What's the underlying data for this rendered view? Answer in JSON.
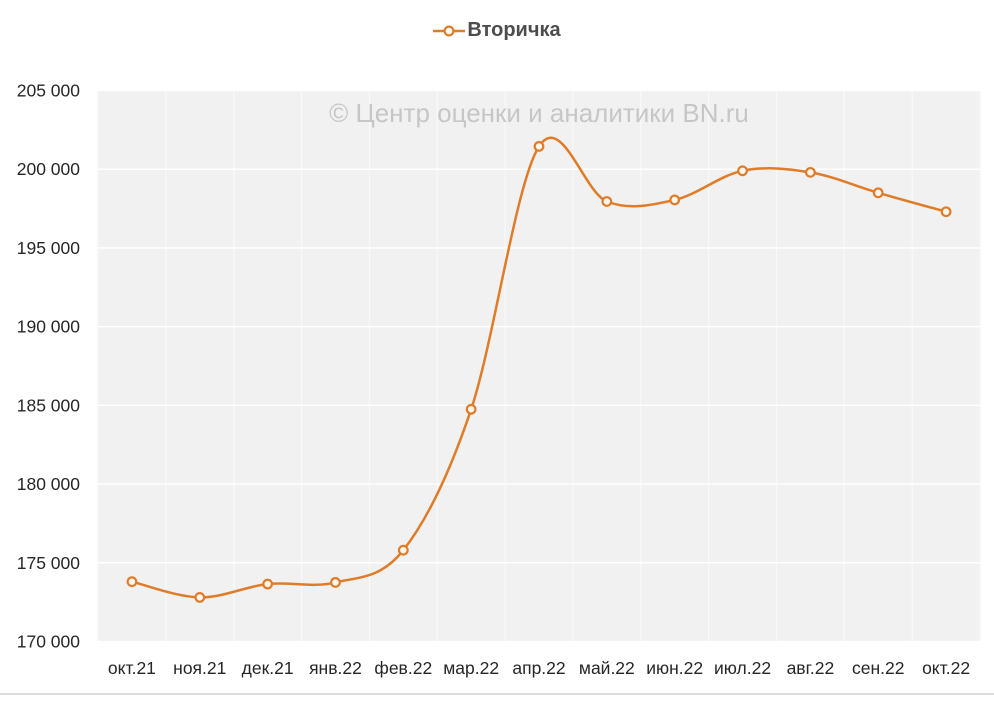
{
  "chart_data": {
    "type": "line",
    "title": "Вторичка",
    "watermark": "© Центр оценки и аналитики BN.ru",
    "categories": [
      "окт.21",
      "ноя.21",
      "дек.21",
      "янв.22",
      "фев.22",
      "мар.22",
      "апр.22",
      "май.22",
      "июн.22",
      "июл.22",
      "авг.22",
      "сен.22",
      "окт.22"
    ],
    "series": [
      {
        "name": "Вторичка",
        "color": "#e07b28",
        "marker_fill": "#fff8f0",
        "values": [
          173800,
          172800,
          173650,
          173750,
          175800,
          184750,
          201450,
          197950,
          198050,
          199900,
          199800,
          198500,
          197300
        ]
      }
    ],
    "ylim": [
      170000,
      205000
    ],
    "ytick_step": 5000,
    "grid": true,
    "legend_position": "top",
    "xlabel": "",
    "ylabel": "",
    "plot_bg": "#f1f1f1",
    "grid_color": "#ffffff",
    "axis_label_color": "#262626"
  }
}
